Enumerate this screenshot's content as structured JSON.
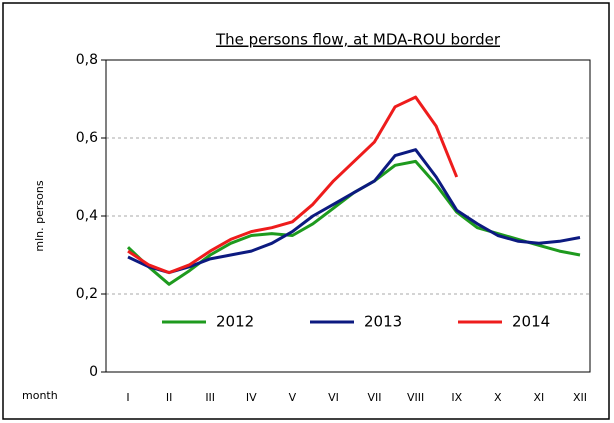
{
  "chart_data": {
    "type": "line",
    "title": "The persons flow, at  MDA-ROU border",
    "y_label": "mln. persons",
    "x_label": "month",
    "categories": [
      "I",
      null,
      "II",
      null,
      "III",
      null,
      "IV",
      null,
      "V",
      null,
      "VI",
      null,
      "VII",
      null,
      "VIII",
      null,
      "IX",
      null,
      "X",
      null,
      "XI",
      null,
      "XII"
    ],
    "series": [
      {
        "name": "2012",
        "color": "#1e9a1e",
        "values": [
          0.32,
          0.27,
          0.225,
          0.26,
          0.3,
          0.33,
          0.35,
          0.355,
          0.35,
          0.38,
          0.42,
          0.46,
          0.49,
          0.53,
          0.54,
          0.48,
          0.41,
          0.37,
          0.355,
          0.34,
          0.325,
          0.31,
          0.3
        ]
      },
      {
        "name": "2013",
        "color": "#0c1a80",
        "values": [
          0.295,
          0.27,
          0.255,
          0.27,
          0.29,
          0.3,
          0.31,
          0.33,
          0.36,
          0.4,
          0.43,
          0.46,
          0.49,
          0.555,
          0.57,
          0.5,
          0.415,
          0.38,
          0.35,
          0.335,
          0.33,
          0.335,
          0.345
        ]
      },
      {
        "name": "2014",
        "color": "#ee1c1c",
        "values": [
          0.31,
          0.275,
          0.255,
          0.275,
          0.31,
          0.34,
          0.36,
          0.37,
          0.385,
          0.43,
          0.49,
          0.54,
          0.59,
          0.68,
          0.705,
          0.63,
          0.5,
          null,
          null,
          null,
          null,
          null,
          null
        ]
      }
    ],
    "ylim": [
      0,
      0.8
    ],
    "yticks": [
      0,
      {
        "value": 0.2,
        "label": "0,2"
      },
      {
        "value": 0.4,
        "label": "0,4"
      },
      {
        "value": 0.6,
        "label": "0,6"
      },
      {
        "value": 0.8,
        "label": "0,8"
      }
    ],
    "grid": true,
    "legend": "bottom"
  }
}
